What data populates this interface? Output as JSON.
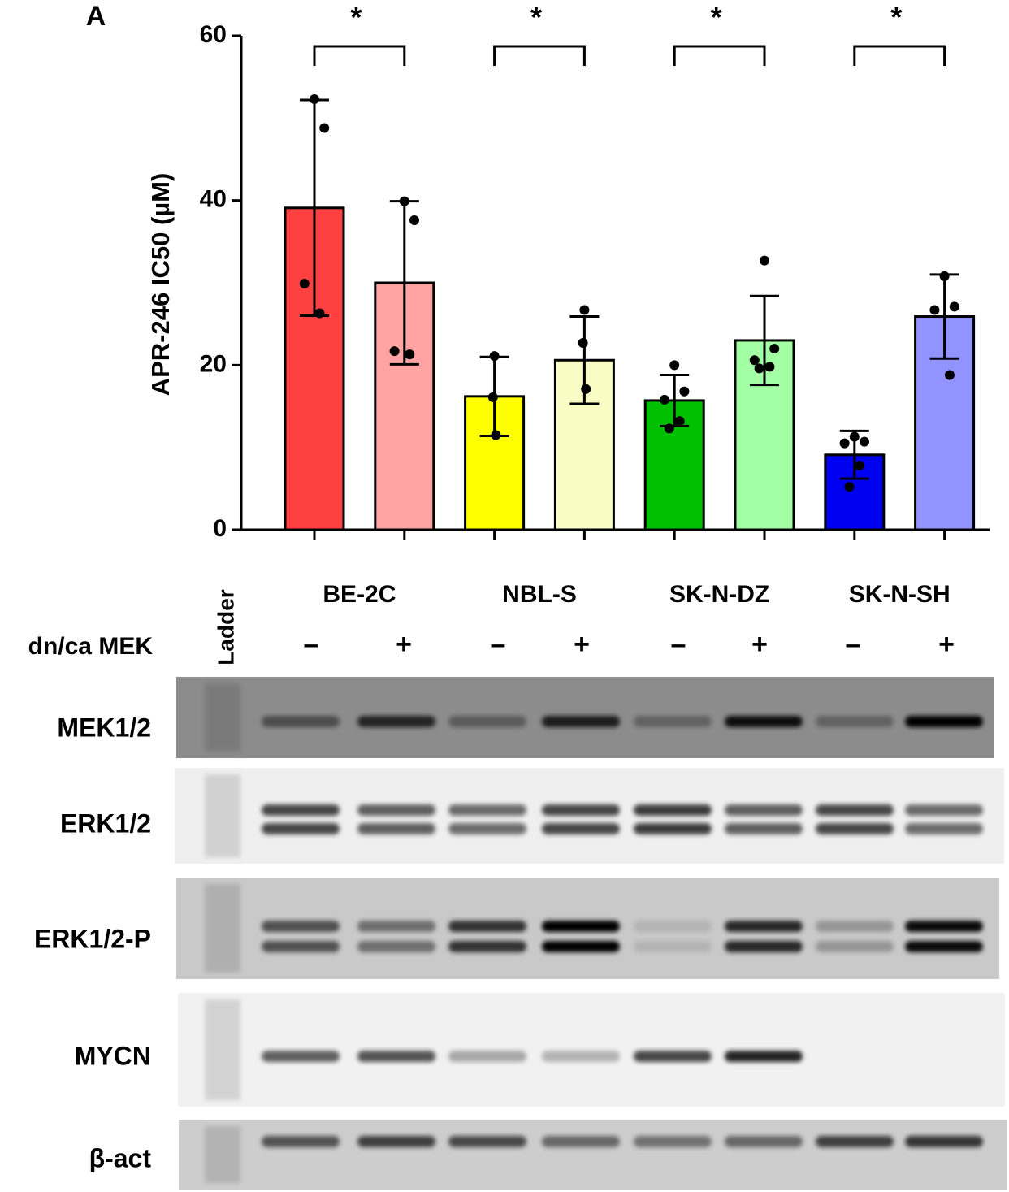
{
  "chart_data": {
    "type": "bar",
    "panel_label": "A",
    "y_label": "APR-246  IC50 (µM)",
    "ylim": [
      0,
      60
    ],
    "yticks": [
      0,
      20,
      40,
      60
    ],
    "groups": [
      "BE-2C",
      "NBL-S",
      "SK-N-DZ",
      "SK-N-SH"
    ],
    "significance": [
      "*",
      "*",
      "*",
      "*"
    ],
    "bars": [
      {
        "color": "#ff4040",
        "value": 39.1,
        "error": 13.1,
        "points": [
          52.3,
          48.8,
          29.9,
          26.3
        ]
      },
      {
        "color": "#ffa3a3",
        "value": 30.0,
        "error": 9.9,
        "points": [
          39.9,
          37.6,
          21.7,
          21.3
        ]
      },
      {
        "color": "#ffff00",
        "value": 16.2,
        "error": 4.8,
        "points": [
          21.1,
          16.1,
          11.5
        ]
      },
      {
        "color": "#f9fcc4",
        "value": 20.6,
        "error": 5.3,
        "points": [
          26.7,
          22.7,
          17.1
        ]
      },
      {
        "color": "#00c000",
        "value": 15.7,
        "error": 3.1,
        "points": [
          20.0,
          16.8,
          15.8,
          13.2,
          12.3
        ]
      },
      {
        "color": "#a3ffa3",
        "value": 23.0,
        "error": 5.4,
        "points": [
          32.7,
          22.0,
          20.6,
          19.8,
          19.6
        ]
      },
      {
        "color": "#0000f0",
        "value": 9.1,
        "error": 2.9,
        "points": [
          11.3,
          10.7,
          10.5,
          7.8,
          5.2
        ]
      },
      {
        "color": "#9393ff",
        "value": 25.9,
        "error": 5.1,
        "points": [
          30.8,
          27.1,
          26.7,
          18.8
        ]
      }
    ]
  },
  "blot": {
    "ladder": "Ladder",
    "treatment_label": "dn/ca MEK",
    "treatment": [
      "–",
      "+",
      "–",
      "+",
      "–",
      "+",
      "–",
      "+"
    ],
    "rows": [
      "MEK1/2",
      "ERK1/2",
      "ERK1/2-P",
      "MYCN",
      "β-act"
    ]
  }
}
